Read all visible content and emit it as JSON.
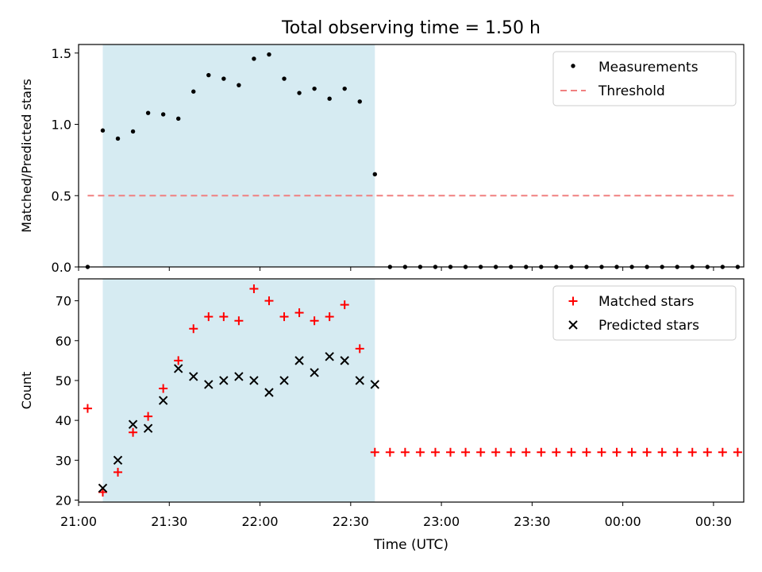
{
  "figure": {
    "title": "Total observing time = 1.50 h",
    "xlabel": "Time (UTC)"
  },
  "chart_data": [
    {
      "type": "scatter",
      "title": "Total observing time = 1.50 h",
      "xlabel": "",
      "ylabel": "Matched/Predicted stars",
      "xlim": [
        "21:00",
        "00:40"
      ],
      "ylim": [
        0,
        1.56
      ],
      "yticks": [
        "0.0",
        "0.5",
        "1.0",
        "1.5"
      ],
      "yticks_values": [
        0,
        0.5,
        1.0,
        1.5
      ],
      "xticks_labels_shown": false,
      "grid": false,
      "legend_position": "top-right",
      "shaded_region": {
        "x_start": "21:08",
        "x_end": "22:38",
        "color": "#add8e6"
      },
      "series": [
        {
          "name": "Measurements",
          "style": "dot",
          "color": "#000000",
          "x": [
            "21:03",
            "21:08",
            "21:13",
            "21:18",
            "21:23",
            "21:28",
            "21:33",
            "21:38",
            "21:43",
            "21:48",
            "21:53",
            "21:58",
            "22:03",
            "22:08",
            "22:13",
            "22:18",
            "22:23",
            "22:28",
            "22:33",
            "22:38",
            "22:43",
            "22:48",
            "22:53",
            "22:58",
            "23:03",
            "23:08",
            "23:13",
            "23:18",
            "23:23",
            "23:28",
            "23:33",
            "23:38",
            "23:43",
            "23:48",
            "23:53",
            "23:58",
            "00:03",
            "00:08",
            "00:13",
            "00:18",
            "00:23",
            "00:28",
            "00:33",
            "00:38"
          ],
          "y": [
            0,
            0.957,
            0.9,
            0.95,
            1.08,
            1.07,
            1.04,
            1.23,
            1.345,
            1.32,
            1.275,
            1.46,
            1.49,
            1.32,
            1.22,
            1.25,
            1.18,
            1.25,
            1.16,
            0.65,
            0,
            0,
            0,
            0,
            0,
            0,
            0,
            0,
            0,
            0,
            0,
            0,
            0,
            0,
            0,
            0,
            0,
            0,
            0,
            0,
            0,
            0,
            0,
            0
          ]
        },
        {
          "name": "Threshold",
          "style": "dashed-line",
          "color": "#f08080",
          "x": [
            "21:03",
            "00:38"
          ],
          "y": [
            0.5,
            0.5
          ]
        }
      ]
    },
    {
      "type": "scatter",
      "xlabel": "Time (UTC)",
      "ylabel": "Count",
      "xlim": [
        "21:00",
        "00:40"
      ],
      "ylim": [
        19.5,
        75.5
      ],
      "yticks": [
        "20",
        "30",
        "40",
        "50",
        "60",
        "70"
      ],
      "yticks_values": [
        20,
        30,
        40,
        50,
        60,
        70
      ],
      "xticks": [
        "21:00",
        "21:30",
        "22:00",
        "22:30",
        "23:00",
        "23:30",
        "00:00",
        "00:30"
      ],
      "grid": false,
      "legend_position": "top-right",
      "shaded_region": {
        "x_start": "21:08",
        "x_end": "22:38",
        "color": "#add8e6"
      },
      "series": [
        {
          "name": "Matched stars",
          "style": "plus",
          "color": "#ff0000",
          "x": [
            "21:03",
            "21:08",
            "21:13",
            "21:18",
            "21:23",
            "21:28",
            "21:33",
            "21:38",
            "21:43",
            "21:48",
            "21:53",
            "21:58",
            "22:03",
            "22:08",
            "22:13",
            "22:18",
            "22:23",
            "22:28",
            "22:33",
            "22:38",
            "22:43",
            "22:48",
            "22:53",
            "22:58",
            "23:03",
            "23:08",
            "23:13",
            "23:18",
            "23:23",
            "23:28",
            "23:33",
            "23:38",
            "23:43",
            "23:48",
            "23:53",
            "23:58",
            "00:03",
            "00:08",
            "00:13",
            "00:18",
            "00:23",
            "00:28",
            "00:33",
            "00:38"
          ],
          "y": [
            43,
            22,
            27,
            37,
            41,
            48,
            55,
            63,
            66,
            66,
            65,
            73,
            70,
            66,
            67,
            65,
            66,
            69,
            58,
            32,
            32,
            32,
            32,
            32,
            32,
            32,
            32,
            32,
            32,
            32,
            32,
            32,
            32,
            32,
            32,
            32,
            32,
            32,
            32,
            32,
            32,
            32,
            32,
            32
          ]
        },
        {
          "name": "Predicted stars",
          "style": "cross",
          "color": "#000000",
          "x": [
            "21:08",
            "21:13",
            "21:18",
            "21:23",
            "21:28",
            "21:33",
            "21:38",
            "21:43",
            "21:48",
            "21:53",
            "21:58",
            "22:03",
            "22:08",
            "22:13",
            "22:18",
            "22:23",
            "22:28",
            "22:33",
            "22:38"
          ],
          "y": [
            23,
            30,
            39,
            38,
            45,
            53,
            51,
            49,
            50,
            51,
            50,
            47,
            50,
            55,
            52,
            56,
            55,
            50,
            49
          ]
        }
      ]
    }
  ]
}
